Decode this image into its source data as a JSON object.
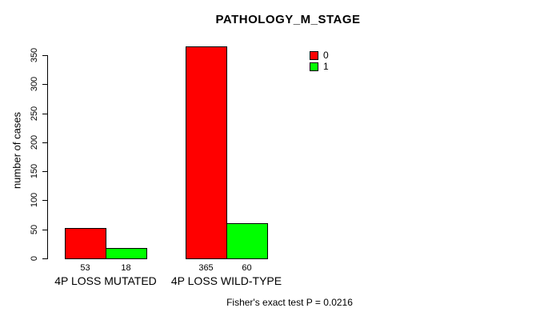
{
  "chart_data": {
    "type": "bar",
    "title": "PATHOLOGY_M_STAGE",
    "xlabel": "",
    "ylabel": "number of cases",
    "categories": [
      "4P LOSS MUTATED",
      "4P LOSS WILD-TYPE"
    ],
    "series": [
      {
        "name": "0",
        "color": "#ff0000",
        "values": [
          53,
          365
        ]
      },
      {
        "name": "1",
        "color": "#00ff00",
        "values": [
          18,
          60
        ]
      }
    ],
    "ylim": [
      0,
      350
    ],
    "yticks": [
      0,
      50,
      100,
      150,
      200,
      250,
      300,
      350
    ],
    "grid": false,
    "legend_position": "top-right",
    "bar_border_color": "#000000",
    "axis_color": "#000000",
    "annotation": "Fisher's exact test P = 0.0216"
  }
}
